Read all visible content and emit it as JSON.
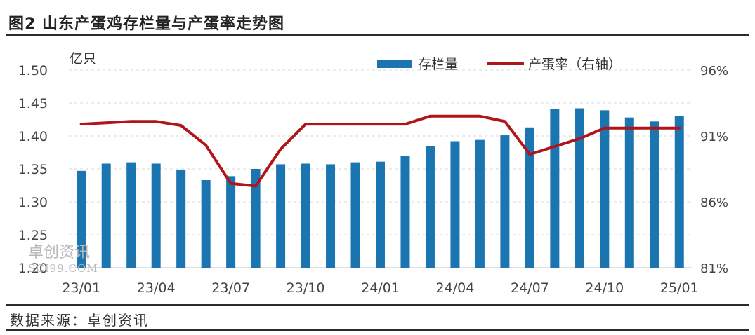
{
  "header": {
    "title": "图2 山东产蛋鸡存栏量与产蛋率走势图"
  },
  "footer": {
    "source": "数据来源：卓创资讯"
  },
  "watermark": {
    "name": "卓创资讯",
    "url": "SCI99.COM"
  },
  "chart_data": {
    "type": "bar",
    "unit_label": "亿只",
    "categories": [
      "23/01",
      "23/02",
      "23/03",
      "23/04",
      "23/05",
      "23/06",
      "23/07",
      "23/08",
      "23/09",
      "23/10",
      "23/11",
      "23/12",
      "24/01",
      "24/02",
      "24/03",
      "24/04",
      "24/05",
      "24/06",
      "24/07",
      "24/08",
      "24/09",
      "24/10",
      "24/11",
      "24/12",
      "25/01"
    ],
    "x_tick_labels": [
      "23/01",
      "23/04",
      "23/07",
      "23/10",
      "24/01",
      "24/04",
      "24/07",
      "24/10",
      "25/01"
    ],
    "series": [
      {
        "name": "存栏量",
        "type": "bar",
        "axis": "left",
        "color": "#1b75b0",
        "values": [
          1.347,
          1.358,
          1.36,
          1.358,
          1.349,
          1.333,
          1.339,
          1.35,
          1.357,
          1.358,
          1.357,
          1.36,
          1.361,
          1.37,
          1.385,
          1.392,
          1.394,
          1.401,
          1.413,
          1.441,
          1.442,
          1.439,
          1.428,
          1.422,
          1.43
        ]
      },
      {
        "name": "产蛋率（右轴）",
        "type": "line",
        "axis": "right",
        "color": "#b0151a",
        "values": [
          91.9,
          92.0,
          92.1,
          92.1,
          91.8,
          90.3,
          87.4,
          87.2,
          90.0,
          91.9,
          91.9,
          91.9,
          91.9,
          91.9,
          92.5,
          92.5,
          92.5,
          92.1,
          89.6,
          90.2,
          90.8,
          91.6,
          91.6,
          91.6,
          91.6
        ]
      }
    ],
    "y_left": {
      "min": 1.2,
      "max": 1.5,
      "ticks": [
        "1.20",
        "1.25",
        "1.30",
        "1.35",
        "1.40",
        "1.45",
        "1.50"
      ]
    },
    "y_right": {
      "min": 81,
      "max": 96,
      "ticks": [
        "81%",
        "86%",
        "91%",
        "96%"
      ]
    },
    "grid": "horizontal-dashed",
    "legend_position": "top-right"
  }
}
